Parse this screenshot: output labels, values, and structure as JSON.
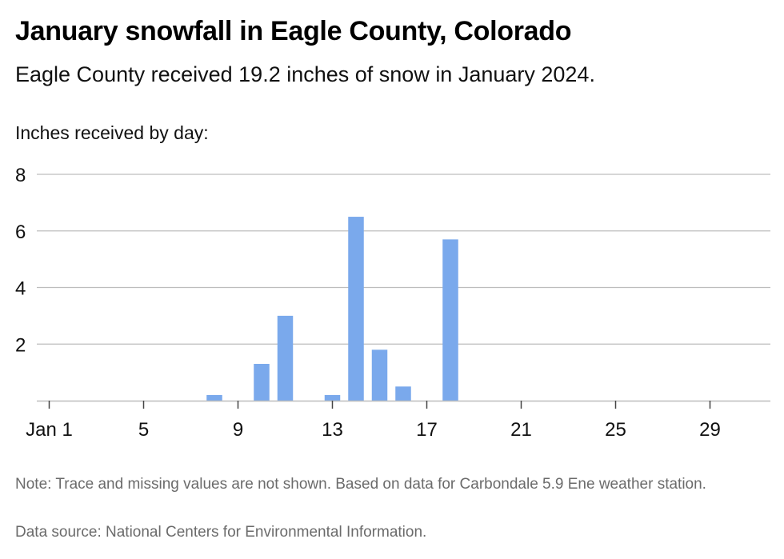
{
  "title": "January snowfall in Eagle County, Colorado",
  "subtitle": "Eagle County received 19.2 inches of snow in January 2024.",
  "note": "Note: Trace and missing values are not shown. Based on data for Carbondale 5.9 Ene weather station.",
  "source": "Data source: National Centers for Environmental Information.",
  "colors": {
    "bar": "#7aa9ec",
    "grid": "#bdbdbd",
    "axis": "#444444",
    "footnote": "#6b6b6b"
  },
  "chart_data": {
    "type": "bar",
    "title": "January snowfall in Eagle County, Colorado",
    "ylabel": "Inches received by day:",
    "xlabel": "",
    "ylim": [
      0,
      8
    ],
    "xlim": [
      1,
      31
    ],
    "yticks": [
      2,
      4,
      6,
      8
    ],
    "xticks": [
      {
        "day": 1,
        "label": "Jan 1"
      },
      {
        "day": 5,
        "label": "5"
      },
      {
        "day": 9,
        "label": "9"
      },
      {
        "day": 13,
        "label": "13"
      },
      {
        "day": 17,
        "label": "17"
      },
      {
        "day": 21,
        "label": "21"
      },
      {
        "day": 25,
        "label": "25"
      },
      {
        "day": 29,
        "label": "29"
      }
    ],
    "grid": true,
    "series": [
      {
        "x": [
          8,
          10,
          11,
          13,
          14,
          15,
          16,
          18
        ],
        "values": [
          0.2,
          1.3,
          3.0,
          0.2,
          6.5,
          1.8,
          0.5,
          5.7
        ]
      }
    ]
  }
}
